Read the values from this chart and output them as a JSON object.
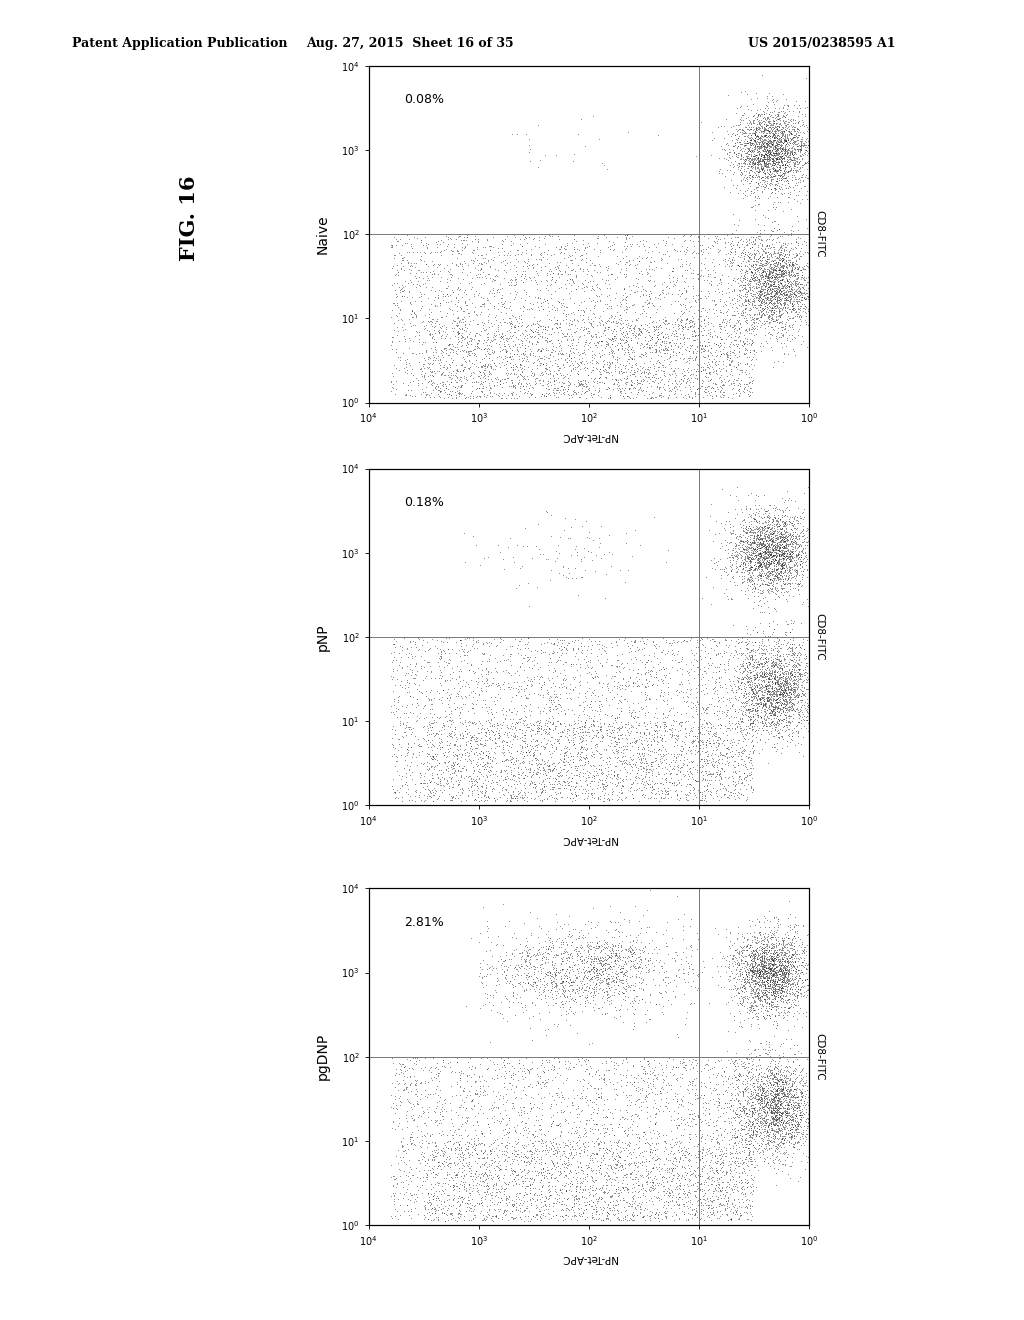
{
  "page_title_left": "Patent Application Publication",
  "page_title_center": "Aug. 27, 2015  Sheet 16 of 35",
  "page_title_right": "US 2015/0238595 A1",
  "fig_label": "FIG. 16",
  "background_color": "#ffffff",
  "panels": [
    {
      "label": "Naive",
      "percentage": "0.08%"
    },
    {
      "label": "pNP",
      "percentage": "0.18%"
    },
    {
      "label": "pgDNP",
      "percentage": "2.81%"
    }
  ],
  "xaxis_label": "NP-Tet-APC",
  "yaxis_label": "CD8-FITC",
  "header_fontsize": 9,
  "fig_label_fontsize": 15,
  "panel_label_fontsize": 10,
  "pct_fontsize": 9,
  "tick_fontsize": 7
}
